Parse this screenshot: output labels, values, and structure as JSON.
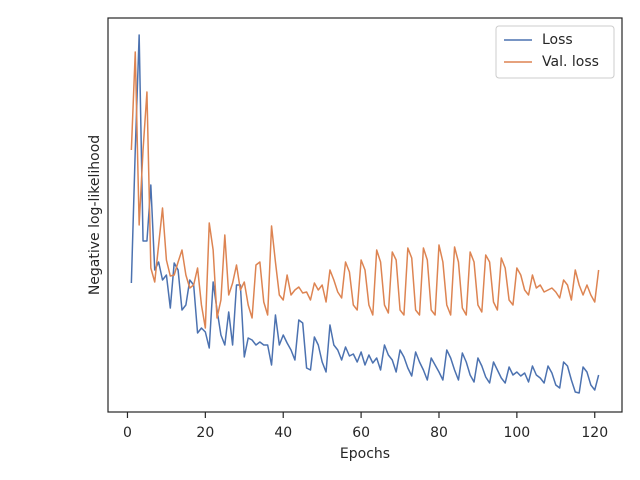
{
  "chart_data": {
    "type": "line",
    "x_label": "Epochs",
    "y_label": "Negative log-likelihood",
    "x": [
      1,
      2,
      3,
      4,
      5,
      6,
      7,
      8,
      9,
      10,
      11,
      12,
      13,
      14,
      15,
      16,
      17,
      18,
      19,
      20,
      21,
      22,
      23,
      24,
      25,
      26,
      27,
      28,
      29,
      30,
      31,
      32,
      33,
      34,
      35,
      36,
      37,
      38,
      39,
      40,
      41,
      42,
      43,
      44,
      45,
      46,
      47,
      48,
      49,
      50,
      51,
      52,
      53,
      54,
      55,
      56,
      57,
      58,
      59,
      60,
      61,
      62,
      63,
      64,
      65,
      66,
      67,
      68,
      69,
      70,
      71,
      72,
      73,
      74,
      75,
      76,
      77,
      78,
      79,
      80,
      81,
      82,
      83,
      84,
      85,
      86,
      87,
      88,
      89,
      90,
      91,
      92,
      93,
      94,
      95,
      96,
      97,
      98,
      99,
      100,
      101,
      102,
      103,
      104,
      105,
      106,
      107,
      108,
      109,
      110,
      111,
      112,
      113,
      114,
      115,
      116,
      117,
      118,
      119,
      120,
      121
    ],
    "series": [
      {
        "name": "Loss",
        "color": "#4c72b0",
        "values": [
          129,
          262,
          377,
          171,
          171,
          227,
          142,
          150,
          132,
          137,
          104,
          149,
          142,
          102,
          107,
          132,
          127,
          79,
          84,
          80,
          64,
          130,
          102,
          77,
          67,
          100,
          67,
          127,
          127,
          55,
          74,
          72,
          67,
          70,
          67,
          67,
          47,
          97,
          67,
          77,
          69,
          62,
          52,
          92,
          89,
          44,
          42,
          75,
          67,
          50,
          40,
          87,
          67,
          62,
          52,
          65,
          56,
          58,
          50,
          60,
          47,
          57,
          49,
          54,
          42,
          67,
          57,
          52,
          40,
          62,
          55,
          44,
          36,
          60,
          50,
          42,
          32,
          54,
          47,
          40,
          32,
          62,
          54,
          42,
          32,
          59,
          50,
          37,
          30,
          54,
          46,
          35,
          29,
          50,
          42,
          34,
          29,
          45,
          37,
          40,
          36,
          39,
          30,
          46,
          37,
          34,
          29,
          46,
          39,
          27,
          24,
          50,
          46,
          32,
          20,
          19,
          45,
          40,
          27,
          22,
          37
        ]
      },
      {
        "name": "Val. loss",
        "color": "#dd8452",
        "values": [
          262,
          360,
          187,
          262,
          320,
          144,
          130,
          167,
          204,
          152,
          136,
          137,
          150,
          162,
          137,
          124,
          127,
          144,
          107,
          84,
          189,
          162,
          94,
          112,
          177,
          117,
          129,
          147,
          122,
          130,
          107,
          94,
          147,
          150,
          110,
          97,
          186,
          150,
          117,
          112,
          137,
          117,
          122,
          125,
          119,
          120,
          112,
          129,
          122,
          127,
          110,
          142,
          132,
          120,
          114,
          150,
          140,
          107,
          102,
          152,
          142,
          107,
          97,
          162,
          150,
          107,
          99,
          160,
          152,
          102,
          97,
          164,
          154,
          102,
          97,
          164,
          152,
          102,
          97,
          167,
          150,
          107,
          97,
          165,
          150,
          104,
          97,
          160,
          150,
          107,
          100,
          157,
          150,
          110,
          102,
          154,
          144,
          112,
          107,
          144,
          137,
          122,
          117,
          137,
          124,
          127,
          120,
          122,
          124,
          120,
          114,
          132,
          127,
          112,
          142,
          127,
          117,
          127,
          117,
          110,
          142
        ]
      }
    ],
    "xlim": [
      -5,
      127
    ],
    "xticks": [
      0,
      20,
      40,
      60,
      80,
      100,
      120
    ],
    "ylim": [
      0,
      394
    ],
    "legend": "upper right"
  }
}
